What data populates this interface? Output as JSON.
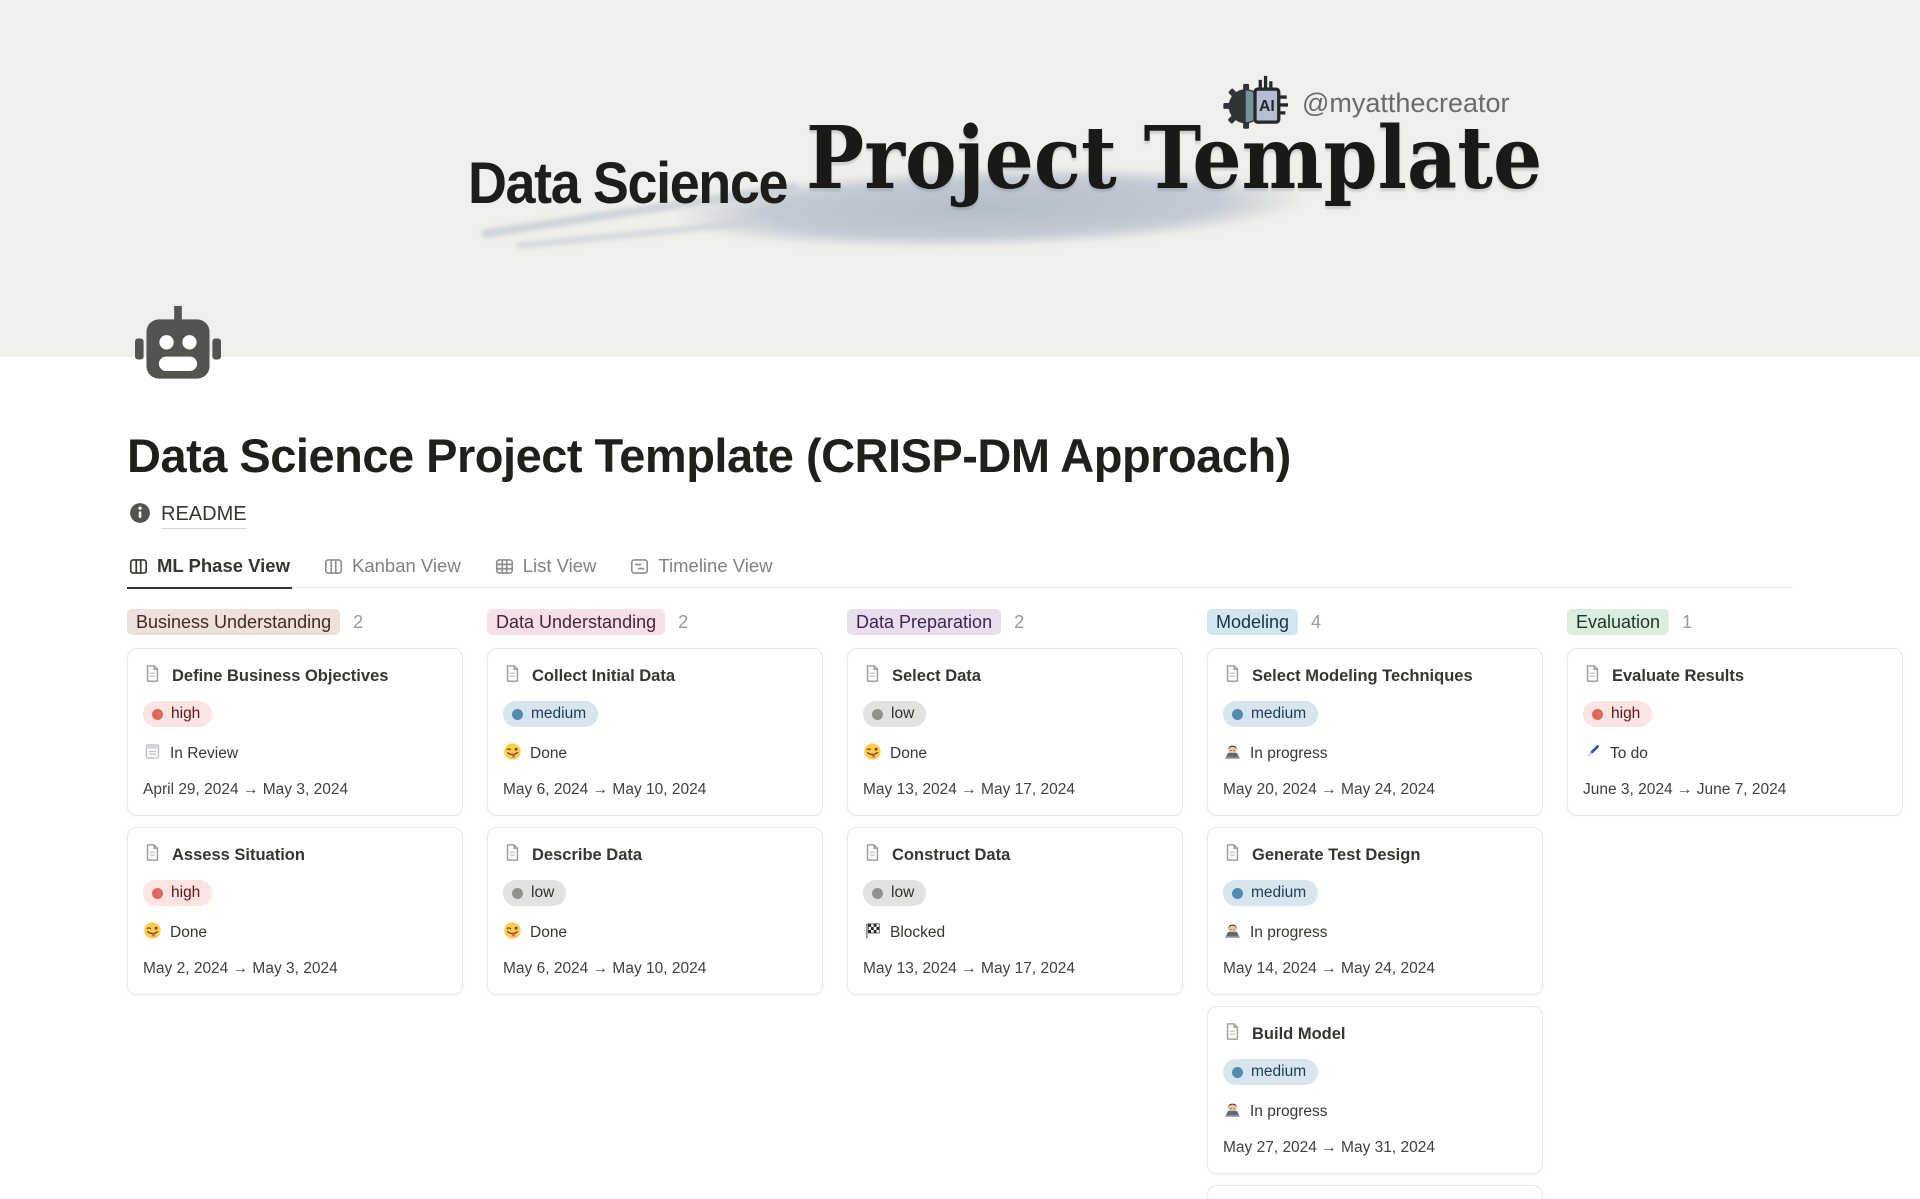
{
  "banner": {
    "brand_left": "Data Science",
    "brand_right": "Project Template",
    "handle": "@myatthecreator",
    "chip_label": "AI",
    "cover_bg": "#F1EFEA",
    "brush_color": "#BCC5CF"
  },
  "page": {
    "title": "Data Science Project Template (CRISP-DM Approach)",
    "readme_label": "README"
  },
  "tabs": [
    {
      "label": "ML Phase View",
      "icon": "board-view-icon",
      "active": true
    },
    {
      "label": "Kanban View",
      "icon": "board-view-icon",
      "active": false
    },
    {
      "label": "List View",
      "icon": "table-view-icon",
      "active": false
    },
    {
      "label": "Timeline View",
      "icon": "timeline-view-icon",
      "active": false
    }
  ],
  "priority_styles": {
    "high": {
      "bg": "#FBE4E2",
      "dot": "#E0675E",
      "text": "#5D1715"
    },
    "medium": {
      "bg": "#D7E5EF",
      "dot": "#528BAD",
      "text": "#1D3D54"
    },
    "low": {
      "bg": "#E3E2E0",
      "dot": "#91918E",
      "text": "#32302C"
    }
  },
  "board": {
    "columns": [
      {
        "name": "Business Understanding",
        "count": "2",
        "pill_bg": "#EEE0DA",
        "pill_text": "#442A1E",
        "cards": [
          {
            "title": "Define Business Objectives",
            "priority": "high",
            "status": "In Review",
            "status_icon": "spiral-notepad",
            "dates": "April 29, 2024 → May 3, 2024"
          },
          {
            "title": "Assess Situation",
            "priority": "high",
            "status": "Done",
            "status_icon": "winking-tongue",
            "dates": "May 2, 2024 → May 3, 2024"
          }
        ]
      },
      {
        "name": "Data Understanding",
        "count": "2",
        "pill_bg": "#F5E0E9",
        "pill_text": "#4C2337",
        "cards": [
          {
            "title": "Collect Initial Data",
            "priority": "medium",
            "status": "Done",
            "status_icon": "winking-tongue",
            "dates": "May 6, 2024 → May 10, 2024"
          },
          {
            "title": "Describe Data",
            "priority": "low",
            "status": "Done",
            "status_icon": "winking-tongue",
            "dates": "May 6, 2024 → May 10, 2024"
          }
        ]
      },
      {
        "name": "Data Preparation",
        "count": "2",
        "pill_bg": "#E8DEEE",
        "pill_text": "#412454",
        "cards": [
          {
            "title": "Select Data",
            "priority": "low",
            "status": "Done",
            "status_icon": "winking-tongue",
            "dates": "May 13, 2024 → May 17, 2024"
          },
          {
            "title": "Construct Data",
            "priority": "low",
            "status": "Blocked",
            "status_icon": "checkered-flag",
            "dates": "May 13, 2024 → May 17, 2024"
          }
        ]
      },
      {
        "name": "Modeling",
        "count": "4",
        "pill_bg": "#D3E5EF",
        "pill_text": "#183347",
        "cards": [
          {
            "title": "Select Modeling Techniques",
            "priority": "medium",
            "status": "In progress",
            "status_icon": "technologist",
            "dates": "May 20, 2024 → May 24, 2024"
          },
          {
            "title": "Generate Test Design",
            "priority": "medium",
            "status": "In progress",
            "status_icon": "technologist",
            "dates": "May 14, 2024 → May 24, 2024"
          },
          {
            "title": "Build Model",
            "priority": "medium",
            "status": "In progress",
            "status_icon": "technologist",
            "dates": "May 27, 2024 → May 31, 2024"
          },
          {
            "partial": true
          }
        ]
      },
      {
        "name": "Evaluation",
        "count": "1",
        "pill_bg": "#DBEDDB",
        "pill_text": "#1C3829",
        "cards": [
          {
            "title": "Evaluate Results",
            "priority": "high",
            "status": "To do",
            "status_icon": "pen",
            "dates": "June 3, 2024 → June 7, 2024"
          }
        ]
      }
    ]
  }
}
